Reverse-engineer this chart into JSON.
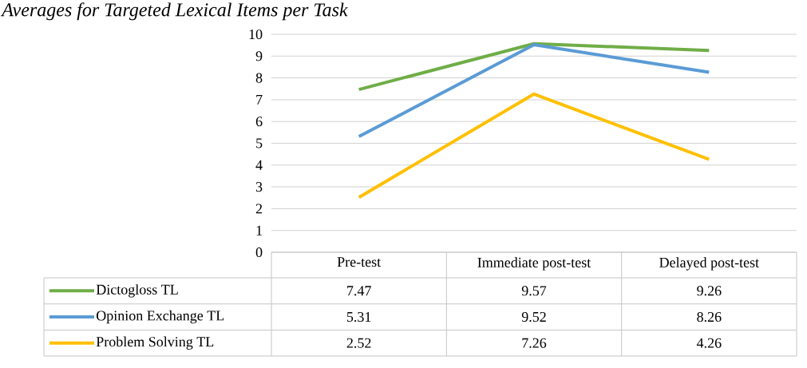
{
  "chart_data": {
    "type": "line",
    "title": "Averages for Targeted Lexical Items per Task",
    "categories": [
      "Pre-test",
      "Immediate post-test",
      "Delayed post-test"
    ],
    "series": [
      {
        "name": "Dictogloss TL",
        "color": "#70ad47",
        "values": [
          7.47,
          9.57,
          9.26
        ]
      },
      {
        "name": "Opinion Exchange TL",
        "color": "#5b9bd5",
        "values": [
          5.31,
          9.52,
          8.26
        ]
      },
      {
        "name": "Problem Solving TL",
        "color": "#ffc000",
        "values": [
          2.52,
          7.26,
          4.26
        ]
      }
    ],
    "ylim": [
      0,
      10
    ],
    "yticks": [
      0,
      1,
      2,
      3,
      4,
      5,
      6,
      7,
      8,
      9,
      10
    ],
    "grid": "y",
    "legend": "bottom",
    "data_labels": true,
    "marker": "none",
    "line_style": "solid"
  }
}
